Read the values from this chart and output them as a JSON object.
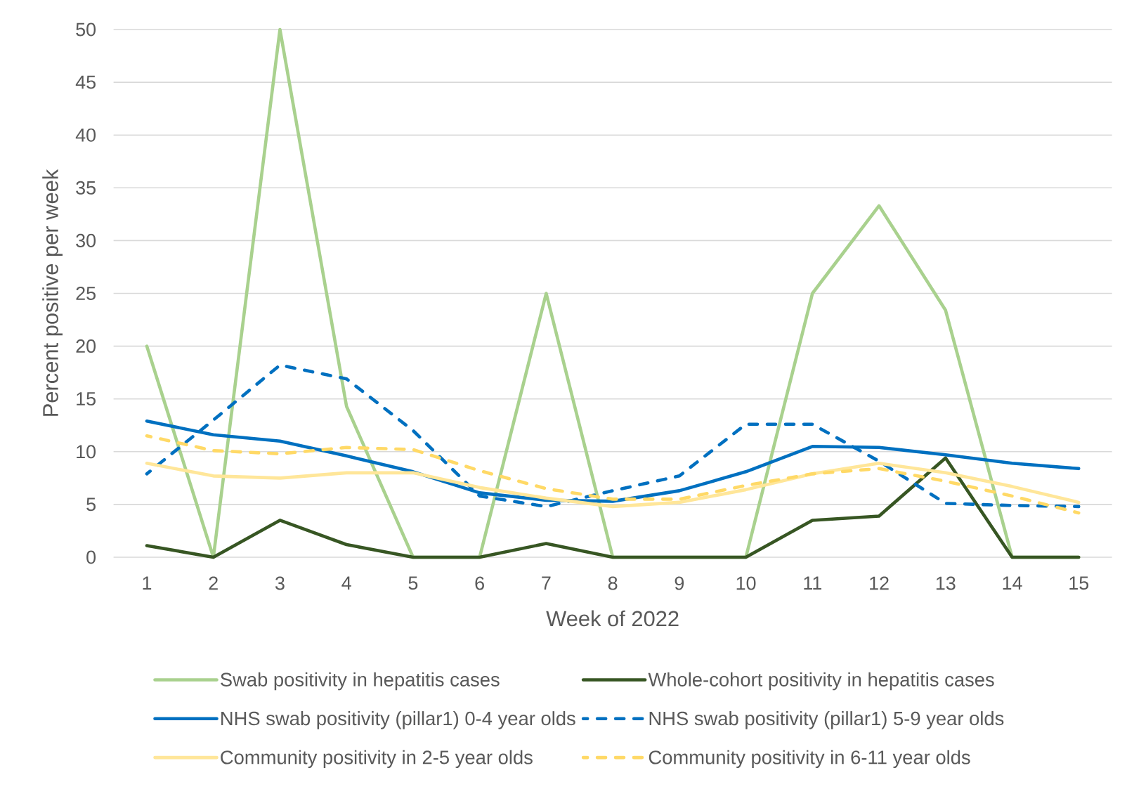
{
  "chart_data": {
    "type": "line",
    "xlabel": "Week of 2022",
    "ylabel": "Percent positive per week",
    "categories": [
      "1",
      "2",
      "3",
      "4",
      "5",
      "6",
      "7",
      "8",
      "9",
      "10",
      "11",
      "12",
      "13",
      "14",
      "15"
    ],
    "ylim": [
      0,
      50
    ],
    "yticks": [
      0,
      5,
      10,
      15,
      20,
      25,
      30,
      35,
      40,
      45,
      50
    ],
    "grid": "y",
    "legend": "bottom",
    "series": [
      {
        "name": "Swab positivity in hepatitis cases",
        "color": "#a9d18e",
        "values": [
          20,
          0,
          50,
          14.3,
          0,
          0,
          25,
          0,
          0,
          0,
          25,
          33.3,
          23.4,
          0,
          0
        ]
      },
      {
        "name": "Whole-cohort positivity in hepatitis cases",
        "color": "#375623",
        "values": [
          1.1,
          0,
          3.5,
          1.2,
          0,
          0,
          1.3,
          0,
          0,
          0,
          3.5,
          3.9,
          9.4,
          0,
          0
        ]
      },
      {
        "name": "NHS swab positivity (pillar1) 0-4 year olds",
        "color": "#0070c0",
        "values": [
          12.9,
          11.6,
          11.0,
          9.6,
          8.1,
          6.1,
          5.4,
          5.3,
          6.3,
          8.1,
          10.5,
          10.4,
          9.7,
          8.9,
          8.4
        ]
      },
      {
        "name": "NHS swab positivity (pillar1) 5-9 year olds",
        "color": "#0070c0",
        "line_style": "dashed",
        "values": [
          7.9,
          13.0,
          18.2,
          16.9,
          12.0,
          5.8,
          4.8,
          6.3,
          7.7,
          12.6,
          12.6,
          9.1,
          5.1,
          4.9,
          4.8
        ]
      },
      {
        "name": "Community positivity in 2-5 year olds",
        "color": "#ffe699",
        "values": [
          8.9,
          7.7,
          7.5,
          8.0,
          8.0,
          6.6,
          5.6,
          4.8,
          5.2,
          6.4,
          7.9,
          8.9,
          8.0,
          6.7,
          5.2
        ]
      },
      {
        "name": "Community positivity in 6-11 year olds",
        "color": "#ffd966",
        "line_style": "dashed",
        "values": [
          11.5,
          10.1,
          9.8,
          10.4,
          10.2,
          8.2,
          6.5,
          5.5,
          5.5,
          6.8,
          7.9,
          8.4,
          7.2,
          5.8,
          4.2
        ]
      }
    ]
  }
}
